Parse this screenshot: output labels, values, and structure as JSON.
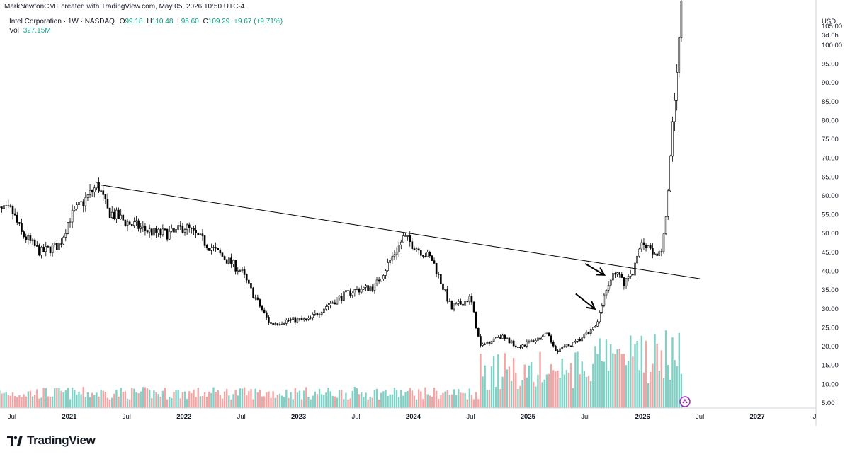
{
  "attribution": "MarkNewtonCMT created with TradingView.com, May 05, 2026 10:50 UTC-4",
  "legend": {
    "symbol": "Intel Corporation · 1W · NASDAQ",
    "open_label": "O",
    "open": "99.18",
    "high_label": "H",
    "high": "110.48",
    "low_label": "L",
    "low": "95.60",
    "close_label": "C",
    "close": "109.29",
    "change": "+9.67 (+9.71%)",
    "vol_label": "Vol",
    "vol": "327.15M"
  },
  "price_axis": {
    "currency": "USD",
    "countdown": "3d 6h",
    "ticks": [
      "105.00",
      "100.00",
      "95.00",
      "90.00",
      "85.00",
      "80.00",
      "75.00",
      "70.00",
      "65.00",
      "60.00",
      "55.00",
      "50.00",
      "45.00",
      "40.00",
      "35.00",
      "30.00",
      "25.00",
      "20.00",
      "15.00",
      "10.00",
      "5.00"
    ]
  },
  "time_axis": {
    "labels": [
      {
        "text": "Jul",
        "bold": false
      },
      {
        "text": "2021",
        "bold": true
      },
      {
        "text": "Jul",
        "bold": false
      },
      {
        "text": "2022",
        "bold": true
      },
      {
        "text": "Jul",
        "bold": false
      },
      {
        "text": "2023",
        "bold": true
      },
      {
        "text": "Jul",
        "bold": false
      },
      {
        "text": "2024",
        "bold": true
      },
      {
        "text": "Jul",
        "bold": false
      },
      {
        "text": "2025",
        "bold": true
      },
      {
        "text": "Jul",
        "bold": false
      },
      {
        "text": "2026",
        "bold": true
      },
      {
        "text": "Jul",
        "bold": false
      },
      {
        "text": "2027",
        "bold": true
      },
      {
        "text": "J",
        "bold": false
      }
    ]
  },
  "footer": {
    "brand": "TradingView"
  },
  "chart_data": {
    "type": "candlestick",
    "interval": "1W",
    "x_range": [
      "2020-05",
      "2027-07"
    ],
    "y_range": [
      5,
      110.48
    ],
    "price_path": [
      {
        "t": "2020-05",
        "p": 56
      },
      {
        "t": "2020-07",
        "p": 56
      },
      {
        "t": "2020-08",
        "p": 50
      },
      {
        "t": "2020-10",
        "p": 45
      },
      {
        "t": "2020-12",
        "p": 47
      },
      {
        "t": "2021-01",
        "p": 54
      },
      {
        "t": "2021-04",
        "p": 63
      },
      {
        "t": "2021-05",
        "p": 56
      },
      {
        "t": "2021-07",
        "p": 53
      },
      {
        "t": "2021-10",
        "p": 50
      },
      {
        "t": "2021-12",
        "p": 50
      },
      {
        "t": "2022-01",
        "p": 52
      },
      {
        "t": "2022-04",
        "p": 46
      },
      {
        "t": "2022-07",
        "p": 40
      },
      {
        "t": "2022-08",
        "p": 35
      },
      {
        "t": "2022-10",
        "p": 26
      },
      {
        "t": "2022-12",
        "p": 27
      },
      {
        "t": "2023-02",
        "p": 27
      },
      {
        "t": "2023-04",
        "p": 31
      },
      {
        "t": "2023-06",
        "p": 34
      },
      {
        "t": "2023-07",
        "p": 35
      },
      {
        "t": "2023-09",
        "p": 36
      },
      {
        "t": "2023-12",
        "p": 49
      },
      {
        "t": "2024-02",
        "p": 45
      },
      {
        "t": "2024-03",
        "p": 43
      },
      {
        "t": "2024-05",
        "p": 30
      },
      {
        "t": "2024-07",
        "p": 33
      },
      {
        "t": "2024-08",
        "p": 20
      },
      {
        "t": "2024-10",
        "p": 23
      },
      {
        "t": "2024-12",
        "p": 20
      },
      {
        "t": "2025-03",
        "p": 23
      },
      {
        "t": "2025-04",
        "p": 19
      },
      {
        "t": "2025-06",
        "p": 21
      },
      {
        "t": "2025-07",
        "p": 23
      },
      {
        "t": "2025-08",
        "p": 25
      },
      {
        "t": "2025-09",
        "p": 33
      },
      {
        "t": "2025-10",
        "p": 40
      },
      {
        "t": "2025-11",
        "p": 37
      },
      {
        "t": "2025-12",
        "p": 40
      },
      {
        "t": "2026-01",
        "p": 48
      },
      {
        "t": "2026-02",
        "p": 46
      },
      {
        "t": "2026-03",
        "p": 44
      },
      {
        "t": "2026-03-20",
        "p": 60
      },
      {
        "t": "2026-04",
        "p": 75
      },
      {
        "t": "2026-04-20",
        "p": 95
      },
      {
        "t": "2026-05",
        "p": 109.29
      }
    ],
    "trendline": {
      "from": {
        "t": "2021-04",
        "p": 63
      },
      "to": {
        "t": "2026-07",
        "p": 38
      }
    },
    "arrows": [
      {
        "from": {
          "t": "2025-06",
          "p": 34
        },
        "to": {
          "t": "2025-08",
          "p": 30
        }
      },
      {
        "from": {
          "t": "2025-07",
          "p": 42
        },
        "to": {
          "t": "2025-09",
          "p": 39
        }
      }
    ],
    "volume_series": "Vol"
  }
}
